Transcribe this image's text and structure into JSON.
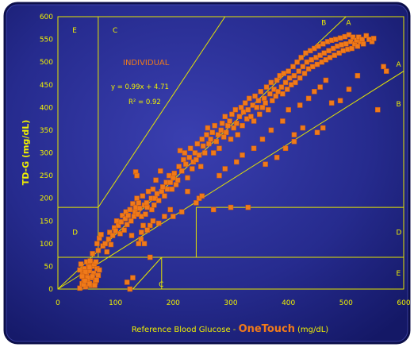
{
  "chart_data": {
    "type": "scatter",
    "title": "",
    "xlabel_prefix": "Reference Blood Glucose - ",
    "xlabel_brand": "OneTouch",
    "xlabel_unit": "(mg/dL)",
    "ylabel": "TD-G  (mg/dL)",
    "xlim": [
      0,
      600
    ],
    "ylim": [
      0,
      600
    ],
    "xticks": [
      "0",
      "100",
      "200",
      "300",
      "400",
      "500",
      "600"
    ],
    "yticks": [
      "0",
      "50",
      "100",
      "150",
      "200",
      "250",
      "300",
      "350",
      "400",
      "450",
      "500",
      "550",
      "600"
    ],
    "subject_label": "INDIVIDUAL",
    "equation": "y = 0.99x + 4.71",
    "r_squared": "R² = 0.92",
    "zone_labels": {
      "A_top": "A",
      "A_right": "A",
      "B_top": "B",
      "B_right": "B",
      "C_top": "C",
      "C_bottom": "C",
      "D_left": "D",
      "D_right": "D",
      "E_top": "E",
      "E_bottom": "E"
    },
    "colors": {
      "background": "#252a8a",
      "lines": "#e6e600",
      "text": "#f0f000",
      "points": "#f07a1a",
      "accent_text": "#f07a1a"
    },
    "points": [
      [
        38,
        2
      ],
      [
        42,
        12
      ],
      [
        45,
        22
      ],
      [
        48,
        5
      ],
      [
        50,
        30
      ],
      [
        52,
        18
      ],
      [
        55,
        40
      ],
      [
        57,
        8
      ],
      [
        60,
        50
      ],
      [
        43,
        35
      ],
      [
        46,
        45
      ],
      [
        53,
        55
      ],
      [
        58,
        25
      ],
      [
        62,
        35
      ],
      [
        65,
        15
      ],
      [
        68,
        45
      ],
      [
        40,
        55
      ],
      [
        50,
        60
      ],
      [
        55,
        48
      ],
      [
        60,
        28
      ],
      [
        48,
        38
      ],
      [
        63,
        55
      ],
      [
        70,
        30
      ],
      [
        45,
        10
      ],
      [
        52,
        25
      ],
      [
        66,
        60
      ],
      [
        38,
        42
      ],
      [
        56,
        62
      ],
      [
        67,
        20
      ],
      [
        42,
        28
      ],
      [
        72,
        42
      ],
      [
        64,
        8
      ],
      [
        47,
        18
      ],
      [
        55,
        12
      ],
      [
        68,
        100
      ],
      [
        70,
        85
      ],
      [
        60,
        78
      ],
      [
        72,
        112
      ],
      [
        75,
        120
      ],
      [
        78,
        95
      ],
      [
        82,
        100
      ],
      [
        85,
        82
      ],
      [
        88,
        110
      ],
      [
        90,
        125
      ],
      [
        92,
        98
      ],
      [
        95,
        118
      ],
      [
        98,
        135
      ],
      [
        100,
        128
      ],
      [
        102,
        150
      ],
      [
        105,
        140
      ],
      [
        108,
        122
      ],
      [
        110,
        148
      ],
      [
        112,
        162
      ],
      [
        115,
        130
      ],
      [
        117,
        155
      ],
      [
        118,
        170
      ],
      [
        120,
        142
      ],
      [
        122,
        162
      ],
      [
        125,
        175
      ],
      [
        127,
        150
      ],
      [
        128,
        118
      ],
      [
        130,
        188
      ],
      [
        132,
        160
      ],
      [
        134,
        170
      ],
      [
        135,
        180
      ],
      [
        137,
        200
      ],
      [
        139,
        165
      ],
      [
        140,
        190
      ],
      [
        142,
        178
      ],
      [
        144,
        110
      ],
      [
        145,
        160
      ],
      [
        147,
        205
      ],
      [
        148,
        140
      ],
      [
        150,
        185
      ],
      [
        152,
        165
      ],
      [
        154,
        190
      ],
      [
        155,
        180
      ],
      [
        157,
        215
      ],
      [
        160,
        140
      ],
      [
        162,
        200
      ],
      [
        163,
        175
      ],
      [
        165,
        220
      ],
      [
        167,
        185
      ],
      [
        169,
        200
      ],
      [
        170,
        240
      ],
      [
        172,
        210
      ],
      [
        175,
        195
      ],
      [
        178,
        260
      ],
      [
        180,
        215
      ],
      [
        182,
        225
      ],
      [
        185,
        205
      ],
      [
        188,
        235
      ],
      [
        190,
        220
      ],
      [
        193,
        250
      ],
      [
        195,
        235
      ],
      [
        198,
        220
      ],
      [
        200,
        245
      ],
      [
        202,
        255
      ],
      [
        205,
        230
      ],
      [
        208,
        240
      ],
      [
        120,
        15
      ],
      [
        125,
        0
      ],
      [
        130,
        25
      ],
      [
        135,
        258
      ],
      [
        137,
        250
      ],
      [
        160,
        70
      ],
      [
        150,
        100
      ],
      [
        145,
        125
      ],
      [
        155,
        130
      ],
      [
        165,
        150
      ],
      [
        140,
        100
      ],
      [
        175,
        145
      ],
      [
        185,
        160
      ],
      [
        195,
        175
      ],
      [
        210,
        270
      ],
      [
        212,
        305
      ],
      [
        215,
        260
      ],
      [
        218,
        285
      ],
      [
        220,
        300
      ],
      [
        222,
        275
      ],
      [
        225,
        245
      ],
      [
        228,
        290
      ],
      [
        230,
        310
      ],
      [
        233,
        265
      ],
      [
        235,
        280
      ],
      [
        238,
        300
      ],
      [
        240,
        285
      ],
      [
        242,
        320
      ],
      [
        245,
        295
      ],
      [
        248,
        270
      ],
      [
        250,
        330
      ],
      [
        252,
        315
      ],
      [
        255,
        300
      ],
      [
        258,
        340
      ],
      [
        260,
        355
      ],
      [
        262,
        320
      ],
      [
        265,
        330
      ],
      [
        268,
        345
      ],
      [
        270,
        300
      ],
      [
        272,
        360
      ],
      [
        275,
        325
      ],
      [
        278,
        340
      ],
      [
        280,
        310
      ],
      [
        283,
        350
      ],
      [
        285,
        365
      ],
      [
        288,
        335
      ],
      [
        290,
        380
      ],
      [
        292,
        345
      ],
      [
        295,
        360
      ],
      [
        298,
        370
      ],
      [
        300,
        330
      ],
      [
        302,
        385
      ],
      [
        305,
        355
      ],
      [
        308,
        395
      ],
      [
        310,
        365
      ],
      [
        312,
        340
      ],
      [
        315,
        380
      ],
      [
        318,
        400
      ],
      [
        320,
        360
      ],
      [
        322,
        390
      ],
      [
        325,
        410
      ],
      [
        328,
        375
      ],
      [
        330,
        395
      ],
      [
        332,
        420
      ],
      [
        335,
        380
      ],
      [
        338,
        405
      ],
      [
        340,
        370
      ],
      [
        342,
        425
      ],
      [
        345,
        400
      ],
      [
        348,
        415
      ],
      [
        350,
        385
      ],
      [
        352,
        435
      ],
      [
        355,
        400
      ],
      [
        358,
        420
      ],
      [
        360,
        410
      ],
      [
        362,
        445
      ],
      [
        365,
        395
      ],
      [
        368,
        430
      ],
      [
        370,
        455
      ],
      [
        372,
        415
      ],
      [
        375,
        440
      ],
      [
        378,
        425
      ],
      [
        380,
        460
      ],
      [
        382,
        435
      ],
      [
        385,
        470
      ],
      [
        388,
        445
      ],
      [
        390,
        430
      ],
      [
        392,
        475
      ],
      [
        395,
        455
      ],
      [
        398,
        440
      ],
      [
        400,
        480
      ],
      [
        402,
        465
      ],
      [
        405,
        450
      ],
      [
        408,
        490
      ],
      [
        410,
        470
      ],
      [
        412,
        455
      ],
      [
        415,
        500
      ],
      [
        418,
        480
      ],
      [
        420,
        465
      ],
      [
        422,
        510
      ],
      [
        425,
        490
      ],
      [
        428,
        475
      ],
      [
        430,
        520
      ],
      [
        432,
        500
      ],
      [
        435,
        485
      ],
      [
        438,
        525
      ],
      [
        440,
        505
      ],
      [
        442,
        490
      ],
      [
        445,
        530
      ],
      [
        448,
        510
      ],
      [
        450,
        495
      ],
      [
        452,
        535
      ],
      [
        455,
        515
      ],
      [
        458,
        500
      ],
      [
        460,
        540
      ],
      [
        462,
        520
      ],
      [
        465,
        505
      ],
      [
        468,
        545
      ],
      [
        470,
        525
      ],
      [
        472,
        510
      ],
      [
        475,
        548
      ],
      [
        478,
        530
      ],
      [
        480,
        515
      ],
      [
        482,
        550
      ],
      [
        485,
        535
      ],
      [
        488,
        520
      ],
      [
        490,
        553
      ],
      [
        492,
        538
      ],
      [
        495,
        525
      ],
      [
        498,
        556
      ],
      [
        500,
        540
      ],
      [
        503,
        528
      ],
      [
        505,
        560
      ],
      [
        508,
        545
      ],
      [
        510,
        530
      ],
      [
        512,
        555
      ],
      [
        515,
        540
      ],
      [
        518,
        548
      ],
      [
        520,
        535
      ],
      [
        522,
        555
      ],
      [
        525,
        545
      ],
      [
        528,
        550
      ],
      [
        530,
        540
      ],
      [
        535,
        558
      ],
      [
        540,
        550
      ],
      [
        545,
        545
      ],
      [
        548,
        552
      ],
      [
        555,
        395
      ],
      [
        565,
        490
      ],
      [
        570,
        480
      ],
      [
        270,
        175
      ],
      [
        300,
        180
      ],
      [
        330,
        180
      ],
      [
        410,
        325
      ],
      [
        450,
        345
      ],
      [
        460,
        355
      ],
      [
        475,
        410
      ],
      [
        490,
        415
      ],
      [
        505,
        440
      ],
      [
        520,
        470
      ],
      [
        240,
        190
      ],
      [
        245,
        200
      ],
      [
        250,
        205
      ],
      [
        200,
        160
      ],
      [
        215,
        170
      ],
      [
        225,
        215
      ],
      [
        280,
        250
      ],
      [
        290,
        265
      ],
      [
        310,
        280
      ],
      [
        320,
        295
      ],
      [
        340,
        310
      ],
      [
        355,
        330
      ],
      [
        370,
        350
      ],
      [
        390,
        370
      ],
      [
        400,
        395
      ],
      [
        420,
        405
      ],
      [
        435,
        420
      ],
      [
        445,
        435
      ],
      [
        455,
        445
      ],
      [
        465,
        460
      ],
      [
        360,
        275
      ],
      [
        380,
        290
      ],
      [
        395,
        310
      ],
      [
        410,
        340
      ],
      [
        425,
        355
      ]
    ]
  }
}
